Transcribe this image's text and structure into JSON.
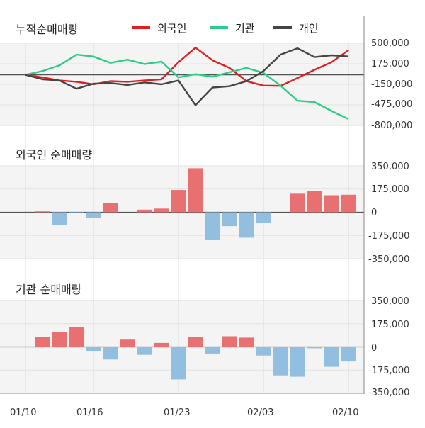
{
  "chart_data": [
    {
      "type": "line",
      "title": "누적순매매량",
      "x_labels": [
        "01/10",
        "01/16",
        "01/23",
        "02/03",
        "02/10"
      ],
      "yticks": [
        "500,000",
        "175,000",
        "-150,000",
        "-475,000",
        "-800,000"
      ],
      "ylim": [
        -800000,
        500000
      ],
      "legend": "top",
      "series": [
        {
          "name": "외국인",
          "color": "#e02020",
          "values": [
            0,
            -40000,
            -90000,
            -110000,
            -150000,
            -100000,
            -110000,
            -90000,
            -70000,
            200000,
            430000,
            230000,
            110000,
            -100000,
            -170000,
            -175000,
            -50000,
            80000,
            200000,
            390000
          ]
        },
        {
          "name": "기관",
          "color": "#2ecc8a",
          "values": [
            0,
            60000,
            150000,
            320000,
            290000,
            190000,
            240000,
            170000,
            210000,
            -40000,
            10000,
            -30000,
            40000,
            110000,
            30000,
            -170000,
            -410000,
            -430000,
            -570000,
            -700000
          ]
        },
        {
          "name": "개인",
          "color": "#444444",
          "values": [
            0,
            -70000,
            -90000,
            -220000,
            -140000,
            -130000,
            -160000,
            -120000,
            -150000,
            -90000,
            -480000,
            -200000,
            -180000,
            -100000,
            60000,
            320000,
            420000,
            280000,
            310000,
            290000
          ]
        }
      ]
    },
    {
      "type": "bar",
      "title": "외국인 순매매량",
      "yticks": [
        "350,000",
        "175,000",
        "0",
        "-175,000",
        "-350,000"
      ],
      "ylim": [
        -350000,
        350000
      ],
      "values": [
        0,
        7000,
        -95000,
        -5000,
        -40000,
        72000,
        0,
        20000,
        28000,
        168000,
        332000,
        -210000,
        -105000,
        -192000,
        -82000,
        0,
        140000,
        160000,
        128000,
        132000
      ]
    },
    {
      "type": "bar",
      "title": "기관 순매매량",
      "yticks": [
        "350,000",
        "175,000",
        "0",
        "-175,000",
        "-350,000"
      ],
      "ylim": [
        -350000,
        350000
      ],
      "values": [
        0,
        75000,
        115000,
        150000,
        -30000,
        -95000,
        55000,
        -60000,
        30000,
        -245000,
        75000,
        -50000,
        80000,
        70000,
        -65000,
        -215000,
        -225000,
        -10000,
        -150000,
        -110000
      ]
    }
  ],
  "colors": {
    "positive_bar": "#e87070",
    "negative_bar": "#92bee0",
    "baseline": "#555555"
  }
}
